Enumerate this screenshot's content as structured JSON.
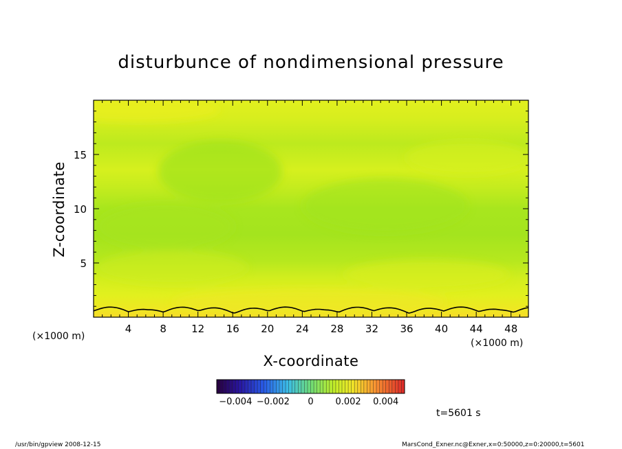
{
  "chart_data": {
    "type": "heatmap",
    "title": "disturbunce of nondimensional pressure",
    "xlabel": "X-coordinate",
    "ylabel": "Z-coordinate",
    "x_unit_left": "(×1000 m)",
    "x_unit_right": "(×1000 m)",
    "xlim": [
      0,
      50
    ],
    "ylim": [
      0,
      20
    ],
    "x_ticks": [
      4,
      8,
      12,
      16,
      20,
      24,
      28,
      32,
      36,
      40,
      44,
      48
    ],
    "y_ticks": [
      5,
      10,
      15
    ],
    "colorbar": {
      "range": [
        -0.005,
        0.005
      ],
      "tick_labels": [
        "−0.004",
        "−0.002",
        "0",
        "0.002",
        "0.004"
      ],
      "tick_values": [
        -0.004,
        -0.002,
        0,
        0.002,
        0.004
      ]
    },
    "field_bands": [
      {
        "z_range": [
          0,
          1
        ],
        "value": 0.003
      },
      {
        "z_range": [
          1,
          4
        ],
        "value": 0.0023
      },
      {
        "z_range": [
          4,
          12
        ],
        "value": 0.0015
      },
      {
        "z_range": [
          12,
          15
        ],
        "value": 0.0022
      },
      {
        "z_range": [
          15,
          18
        ],
        "value": 0.0017
      },
      {
        "z_range": [
          18,
          20
        ],
        "value": 0.0024
      }
    ],
    "contour_level": 0.003,
    "contour_z_approx_km": 0.8,
    "colors": {
      "yellow_orange": "#f5e02a",
      "yellow": "#e6f21e",
      "yellow_green": "#c8ee1e",
      "green": "#a6e61e"
    }
  },
  "time_label": "t=5601 s",
  "footer": {
    "left": "/usr/bin/gpview   2008-12-15",
    "right": "MarsCond_Exner.nc@Exner,x=0:50000,z=0:20000,t=5601"
  }
}
